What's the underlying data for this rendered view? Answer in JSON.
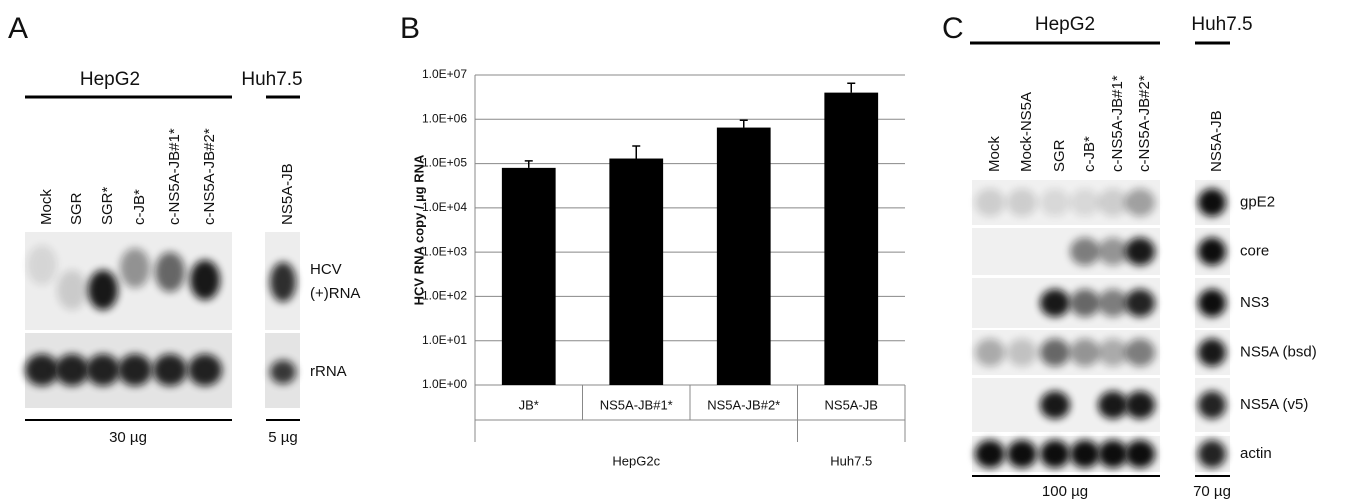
{
  "panel_a": {
    "letter": "A",
    "cell_lines": [
      "HepG2",
      "Huh7.5"
    ],
    "lanes": [
      "Mock",
      "SGR",
      "SGR*",
      "c-JB*",
      "c-NS5A-JB#1*",
      "c-NS5A-JB#2*"
    ],
    "huh_lanes": [
      "NS5A-JB"
    ],
    "row_labels": [
      "HCV",
      "(+)RNA",
      "rRNA"
    ],
    "amounts": [
      "30 µg",
      "5 µg"
    ]
  },
  "chart_data": {
    "type": "bar",
    "panel_label": "B",
    "y_label": "HCV RNA copy / µg RNA",
    "categories": [
      "JB*",
      "NS5A-JB#1*",
      "NS5A-JB#2*",
      "NS5A-JB"
    ],
    "groups": [
      "HepG2c",
      "Huh7.5"
    ],
    "series": [
      {
        "color": "#000000",
        "values": [
          80000,
          130000,
          650000,
          4000000
        ],
        "errors": [
          35000,
          120000,
          300000,
          2500000
        ]
      }
    ],
    "log_scale": true,
    "ylim": [
      1,
      10000000
    ],
    "yticks": [
      {
        "value": 1,
        "label": "1.0E+00"
      },
      {
        "value": 10,
        "label": "1.0E+01"
      },
      {
        "value": 100,
        "label": "1.0E+02"
      },
      {
        "value": 1000,
        "label": "1.0E+03"
      },
      {
        "value": 10000,
        "label": "1.0E+04"
      },
      {
        "value": 100000,
        "label": "1.0E+05"
      },
      {
        "value": 1000000,
        "label": "1.0E+06"
      },
      {
        "value": 10000000,
        "label": "1.0E+07"
      }
    ],
    "grid": true
  },
  "panel_c": {
    "letter": "C",
    "cell_lines": [
      "HepG2",
      "Huh7.5"
    ],
    "lanes": [
      "Mock",
      "Mock-NS5A",
      "SGR",
      "c-JB*",
      "c-NS5A-JB#1*",
      "c-NS5A-JB#2*"
    ],
    "huh_lanes": [
      "NS5A-JB"
    ],
    "row_labels": [
      "gpE2",
      "core",
      "NS3",
      "NS5A (bsd)",
      "NS5A (v5)",
      "actin"
    ],
    "amounts": [
      "100 µg",
      "70 µg"
    ]
  }
}
